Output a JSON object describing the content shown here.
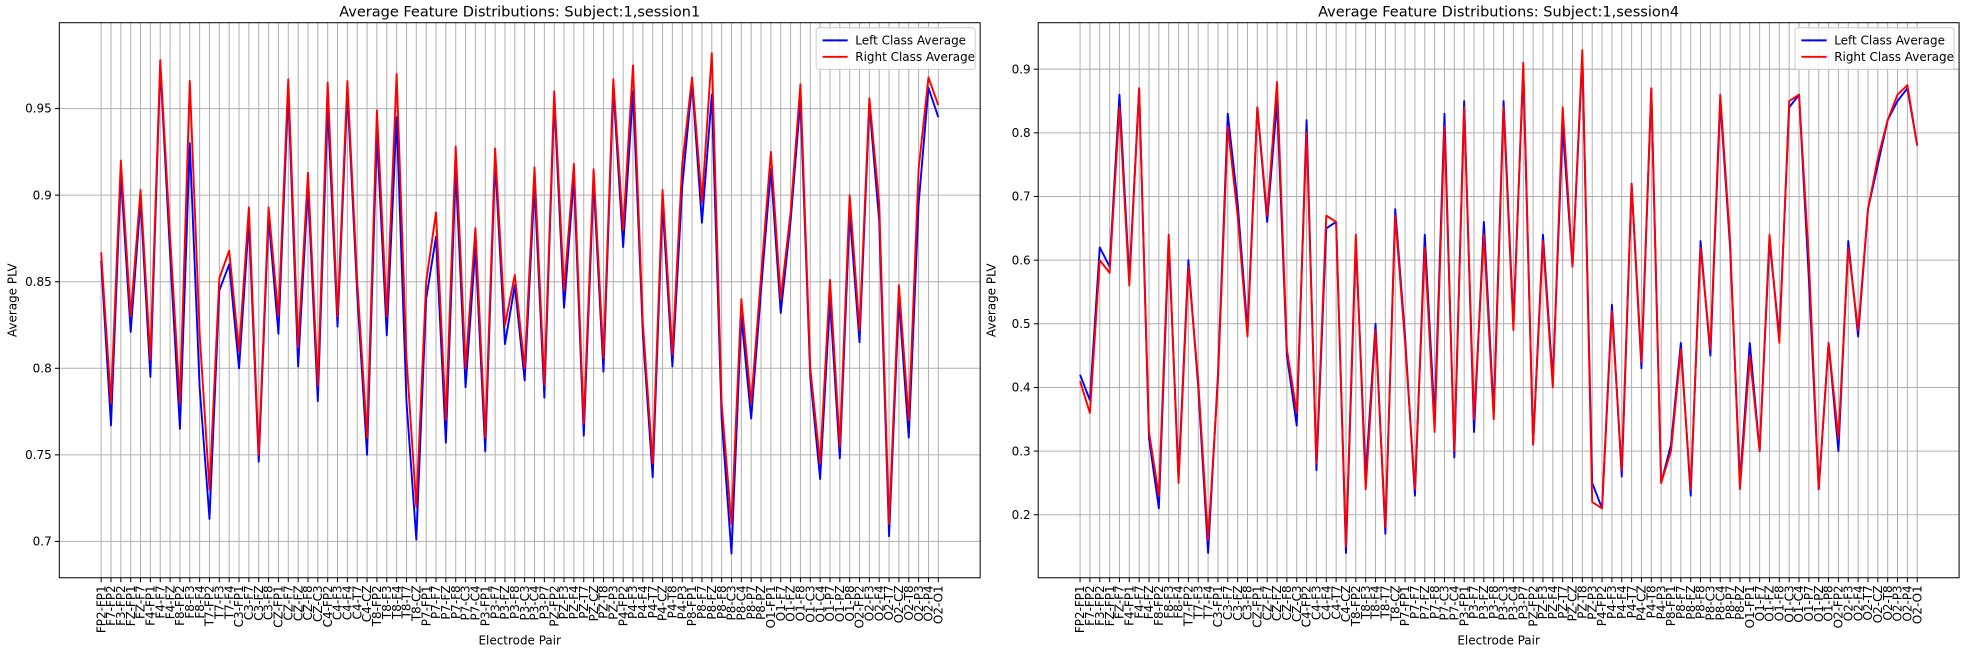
{
  "chart_data": [
    {
      "type": "line",
      "title": "Average Feature Distributions: Subject:1,session1",
      "xlabel": "Electrode Pair",
      "ylabel": "Average PLV",
      "categories": [
        "FP2-FP1",
        "F7-FP2",
        "F3-FP2",
        "FZ-FP1",
        "FZ-F7",
        "F4-FP1",
        "F4-F7",
        "F4-FZ",
        "F8-FP2",
        "F8-F3",
        "F8-F4",
        "T7-FP2",
        "T7-F3",
        "T7-F4",
        "C3-FP1",
        "C3-F7",
        "C3-FZ",
        "C3-F8",
        "CZ-FP1",
        "CZ-F7",
        "CZ-FZ",
        "CZ-F8",
        "CZ-C3",
        "C4-FP2",
        "C4-F3",
        "C4-F4",
        "C4-T7",
        "C4-CZ",
        "T8-FP2",
        "T8-F3",
        "T8-F4",
        "T8-T7",
        "T8-CZ",
        "P7-FP1",
        "P7-F7",
        "P7-FZ",
        "P7-F8",
        "P7-C3",
        "P7-C4",
        "P3-FP1",
        "P3-F7",
        "P3-FZ",
        "P3-F8",
        "P3-C3",
        "P3-C4",
        "P3-P7",
        "PZ-FP2",
        "PZ-F3",
        "PZ-F4",
        "PZ-T7",
        "PZ-CZ",
        "PZ-T8",
        "PZ-P3",
        "P4-FP2",
        "P4-F3",
        "P4-F4",
        "P4-T7",
        "P4-CZ",
        "P4-T8",
        "P4-P3",
        "P8-FP1",
        "P8-F7",
        "P8-FZ",
        "P8-F8",
        "P8-C3",
        "P8-C4",
        "P8-P7",
        "P8-PZ",
        "O1-FP1",
        "O1-F7",
        "O1-FZ",
        "O1-F8",
        "O1-C3",
        "O1-C4",
        "O1-P7",
        "O1-PZ",
        "O1-P8",
        "O2-FP2",
        "O2-F3",
        "O2-F4",
        "O2-T7",
        "O2-CZ",
        "O2-T8",
        "O2-P3",
        "O2-P4",
        "O2-O1"
      ],
      "series": [
        {
          "name": "Left Class Average",
          "color": "#0000ff",
          "values": [
            0.862,
            0.767,
            0.912,
            0.821,
            0.897,
            0.795,
            0.975,
            0.866,
            0.765,
            0.93,
            0.789,
            0.713,
            0.845,
            0.86,
            0.8,
            0.885,
            0.746,
            0.887,
            0.82,
            0.96,
            0.801,
            0.905,
            0.781,
            0.952,
            0.824,
            0.96,
            0.843,
            0.75,
            0.936,
            0.819,
            0.945,
            0.781,
            0.701,
            0.84,
            0.876,
            0.757,
            0.915,
            0.789,
            0.87,
            0.752,
            0.92,
            0.814,
            0.848,
            0.793,
            0.906,
            0.783,
            0.955,
            0.835,
            0.91,
            0.761,
            0.908,
            0.798,
            0.962,
            0.87,
            0.96,
            0.82,
            0.737,
            0.895,
            0.801,
            0.905,
            0.965,
            0.884,
            0.958,
            0.771,
            0.693,
            0.83,
            0.771,
            0.845,
            0.915,
            0.832,
            0.885,
            0.955,
            0.795,
            0.736,
            0.84,
            0.748,
            0.89,
            0.815,
            0.952,
            0.885,
            0.703,
            0.84,
            0.76,
            0.895,
            0.962,
            0.945
          ]
        },
        {
          "name": "Right Class Average",
          "color": "#ff0000",
          "values": [
            0.867,
            0.78,
            0.92,
            0.83,
            0.903,
            0.805,
            0.978,
            0.876,
            0.78,
            0.966,
            0.82,
            0.73,
            0.852,
            0.868,
            0.81,
            0.893,
            0.75,
            0.893,
            0.83,
            0.967,
            0.812,
            0.913,
            0.79,
            0.965,
            0.83,
            0.966,
            0.85,
            0.76,
            0.949,
            0.83,
            0.97,
            0.806,
            0.72,
            0.85,
            0.89,
            0.77,
            0.928,
            0.8,
            0.881,
            0.76,
            0.927,
            0.825,
            0.854,
            0.8,
            0.916,
            0.79,
            0.96,
            0.845,
            0.918,
            0.768,
            0.915,
            0.806,
            0.967,
            0.88,
            0.975,
            0.826,
            0.745,
            0.903,
            0.808,
            0.918,
            0.968,
            0.896,
            0.982,
            0.78,
            0.71,
            0.84,
            0.78,
            0.853,
            0.925,
            0.84,
            0.89,
            0.964,
            0.8,
            0.745,
            0.851,
            0.755,
            0.9,
            0.822,
            0.956,
            0.895,
            0.71,
            0.848,
            0.77,
            0.915,
            0.968,
            0.952
          ]
        }
      ],
      "ylim": [
        0.679,
        0.9996
      ],
      "yticks": [
        0.7,
        0.75,
        0.8,
        0.85,
        0.9,
        0.95
      ],
      "grid": true,
      "legend": "upper right"
    },
    {
      "type": "line",
      "title": "Average Feature Distributions: Subject:1,session4",
      "xlabel": "Electrode Pair",
      "ylabel": "Average PLV",
      "categories": [
        "FP2-FP1",
        "F7-FP2",
        "F3-FP2",
        "FZ-FP1",
        "FZ-F7",
        "F4-FP1",
        "F4-F7",
        "F4-FZ",
        "F8-FP2",
        "F8-F3",
        "F8-F4",
        "T7-FP2",
        "T7-F3",
        "T7-F4",
        "C3-FP1",
        "C3-F7",
        "C3-FZ",
        "C3-F8",
        "CZ-FP1",
        "CZ-F7",
        "CZ-FZ",
        "CZ-F8",
        "CZ-C3",
        "C4-FP2",
        "C4-F3",
        "C4-F4",
        "C4-T7",
        "C4-CZ",
        "T8-FP2",
        "T8-F3",
        "T8-F4",
        "T8-T7",
        "T8-CZ",
        "P7-FP1",
        "P7-F7",
        "P7-FZ",
        "P7-F8",
        "P7-C3",
        "P7-C4",
        "P3-FP1",
        "P3-F7",
        "P3-FZ",
        "P3-F8",
        "P3-C3",
        "P3-C4",
        "P3-P7",
        "PZ-FP2",
        "PZ-F3",
        "PZ-F4",
        "PZ-T7",
        "PZ-CZ",
        "PZ-T8",
        "PZ-P3",
        "P4-FP2",
        "P4-F3",
        "P4-F4",
        "P4-T7",
        "P4-CZ",
        "P4-T8",
        "P4-P3",
        "P8-FP1",
        "P8-F7",
        "P8-FZ",
        "P8-F8",
        "P8-C3",
        "P8-C4",
        "P8-P7",
        "P8-PZ",
        "O1-FP1",
        "O1-F7",
        "O1-FZ",
        "O1-F8",
        "O1-C3",
        "O1-C4",
        "O1-P7",
        "O1-PZ",
        "O1-P8",
        "O2-FP2",
        "O2-F3",
        "O2-F4",
        "O2-T7",
        "O2-CZ",
        "O2-T8",
        "O2-P3",
        "O2-P4",
        "O2-O1"
      ],
      "series": [
        {
          "name": "Left Class Average",
          "color": "#0000ff",
          "values": [
            0.42,
            0.38,
            0.62,
            0.59,
            0.86,
            0.57,
            0.87,
            0.32,
            0.21,
            0.63,
            0.26,
            0.6,
            0.4,
            0.14,
            0.42,
            0.83,
            0.69,
            0.49,
            0.84,
            0.66,
            0.85,
            0.45,
            0.34,
            0.82,
            0.27,
            0.65,
            0.66,
            0.14,
            0.63,
            0.26,
            0.5,
            0.17,
            0.68,
            0.48,
            0.23,
            0.64,
            0.35,
            0.83,
            0.29,
            0.85,
            0.33,
            0.66,
            0.36,
            0.85,
            0.5,
            0.9,
            0.31,
            0.64,
            0.41,
            0.81,
            0.59,
            0.92,
            0.25,
            0.21,
            0.53,
            0.26,
            0.72,
            0.43,
            0.87,
            0.25,
            0.31,
            0.47,
            0.23,
            0.63,
            0.45,
            0.85,
            0.62,
            0.25,
            0.47,
            0.3,
            0.63,
            0.48,
            0.84,
            0.86,
            0.57,
            0.24,
            0.47,
            0.3,
            0.63,
            0.48,
            0.68,
            0.75,
            0.82,
            0.85,
            0.87,
            0.78
          ]
        },
        {
          "name": "Right Class Average",
          "color": "#ff0000",
          "values": [
            0.41,
            0.36,
            0.6,
            0.58,
            0.84,
            0.56,
            0.87,
            0.33,
            0.23,
            0.64,
            0.25,
            0.59,
            0.41,
            0.16,
            0.41,
            0.81,
            0.67,
            0.48,
            0.84,
            0.67,
            0.88,
            0.46,
            0.36,
            0.8,
            0.28,
            0.67,
            0.66,
            0.15,
            0.64,
            0.24,
            0.49,
            0.18,
            0.67,
            0.47,
            0.24,
            0.62,
            0.33,
            0.81,
            0.3,
            0.84,
            0.35,
            0.64,
            0.35,
            0.84,
            0.49,
            0.91,
            0.31,
            0.63,
            0.4,
            0.84,
            0.59,
            0.93,
            0.22,
            0.21,
            0.52,
            0.27,
            0.72,
            0.44,
            0.87,
            0.25,
            0.3,
            0.46,
            0.24,
            0.62,
            0.46,
            0.86,
            0.63,
            0.24,
            0.45,
            0.3,
            0.64,
            0.47,
            0.85,
            0.86,
            0.6,
            0.24,
            0.47,
            0.32,
            0.62,
            0.49,
            0.68,
            0.76,
            0.82,
            0.86,
            0.875,
            0.78
          ]
        }
      ],
      "ylim": [
        0.101,
        0.973
      ],
      "yticks": [
        0.2,
        0.3,
        0.4,
        0.5,
        0.6,
        0.7,
        0.8,
        0.9
      ],
      "grid": true,
      "legend": "upper right"
    }
  ]
}
